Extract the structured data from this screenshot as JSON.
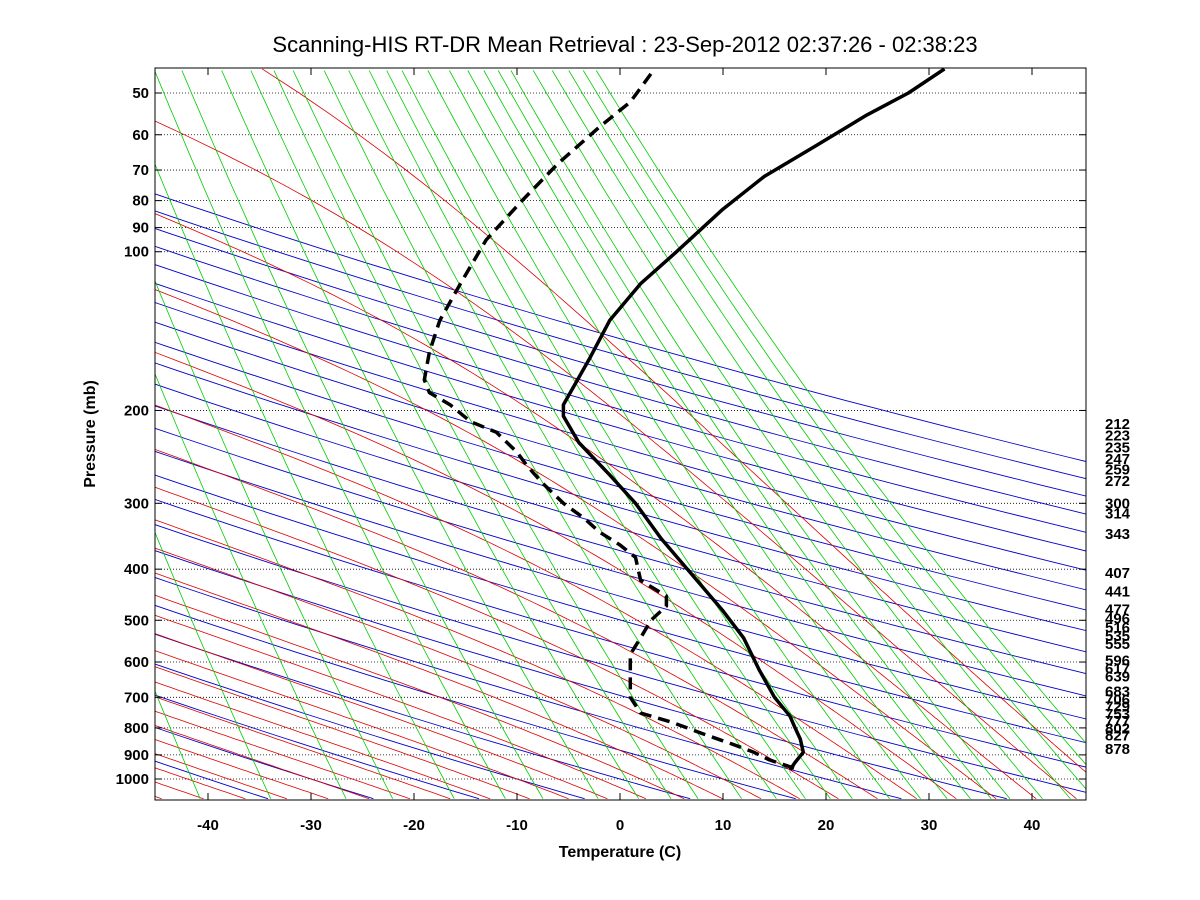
{
  "chart_data": {
    "type": "line",
    "title": "Scanning-HIS RT-DR Mean Retrieval : 23-Sep-2012 02:37:26 - 02:38:23",
    "xlabel": "Temperature (C)",
    "ylabel": "Pressure (mb)",
    "xlim": [
      -45,
      45
    ],
    "ylim": [
      1090,
      45
    ],
    "y_scale": "log",
    "x_ticks": [
      "-40",
      "-30",
      "-20",
      "-10",
      "0",
      "10",
      "20",
      "30",
      "40"
    ],
    "y_ticks": [
      "50",
      "60",
      "70",
      "80",
      "90",
      "100",
      "200",
      "300",
      "400",
      "500",
      "600",
      "700",
      "800",
      "900",
      "1000"
    ],
    "grid": "horizontal dotted at pressure ticks",
    "right_labels": [
      "212",
      "223",
      "235",
      "247",
      "259",
      "272",
      "300",
      "314",
      "343",
      "407",
      "441",
      "477",
      "496",
      "516",
      "535",
      "555",
      "596",
      "617",
      "639",
      "683",
      "706",
      "729",
      "753",
      "777",
      "802",
      "827",
      "878"
    ],
    "background_lines": {
      "dry_adiabat_color": "#0000cc",
      "moist_adiabat_color": "#dd0000",
      "mixing_ratio_color": "#00cc00"
    },
    "series": [
      {
        "style": "solid",
        "color": "#000000",
        "x": [
          31.5,
          28,
          24,
          19,
          14,
          10,
          5.5,
          2,
          -1,
          -3,
          -5.5,
          -5.5,
          -4,
          -1,
          1.5,
          4,
          7,
          10,
          12,
          13.5,
          15,
          16.5,
          17,
          17.5,
          17.8,
          17,
          16.5
        ],
        "y": [
          45,
          50,
          55,
          63,
          72,
          83,
          100,
          115,
          135,
          160,
          195,
          205,
          230,
          265,
          300,
          350,
          410,
          480,
          540,
          620,
          700,
          760,
          800,
          840,
          890,
          930,
          960
        ]
      },
      {
        "style": "dashed",
        "color": "#000000",
        "x": [
          3,
          1,
          -2,
          -6,
          -9.5,
          -13,
          -15.5,
          -17.5,
          -18.5,
          -19,
          -18.5,
          -16.5,
          -14.5,
          -12,
          -10,
          -9,
          -7.5,
          -5.5,
          -3.5,
          -2,
          0,
          1.5,
          2,
          4.5,
          4.5,
          3,
          2,
          1,
          1,
          1,
          2,
          5,
          8,
          11,
          13,
          14.5,
          17,
          16.5
        ],
        "y": [
          46,
          52,
          58,
          68,
          80,
          95,
          115,
          135,
          155,
          175,
          185,
          195,
          210,
          220,
          240,
          255,
          275,
          300,
          320,
          340,
          360,
          380,
          420,
          450,
          470,
          500,
          540,
          580,
          620,
          700,
          750,
          780,
          820,
          860,
          890,
          920,
          955,
          970
        ]
      }
    ]
  }
}
